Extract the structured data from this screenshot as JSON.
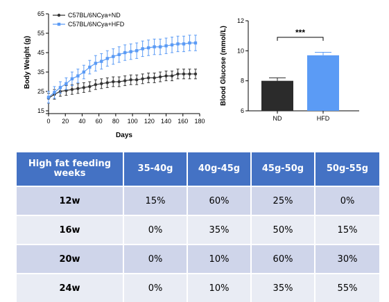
{
  "chart_data": [
    {
      "type": "line",
      "title": "",
      "xlabel": "Days",
      "ylabel": "Body Weight (g)",
      "xlim": [
        0,
        180
      ],
      "ylim": [
        15,
        65
      ],
      "xticks": [
        0,
        20,
        40,
        60,
        80,
        100,
        120,
        140,
        160,
        180
      ],
      "yticks": [
        15,
        25,
        35,
        45,
        55,
        65
      ],
      "legend": "top-left",
      "x": [
        0,
        7,
        14,
        21,
        28,
        35,
        42,
        49,
        56,
        63,
        70,
        77,
        84,
        91,
        98,
        105,
        112,
        119,
        126,
        133,
        140,
        147,
        154,
        161,
        168,
        175
      ],
      "series": [
        {
          "name": "C57BL/6NCya+ND",
          "color": "#333333",
          "marker": "circle",
          "values": [
            21.5,
            23.5,
            25,
            25.5,
            26,
            26.5,
            27,
            27.5,
            28.5,
            29,
            29.5,
            30,
            30,
            30.5,
            31,
            31,
            31.5,
            32,
            32,
            32.5,
            33,
            33,
            34,
            34,
            34,
            34
          ],
          "error": [
            2.5,
            2.5,
            2.5,
            2.5,
            2.5,
            2.5,
            2.5,
            2.5,
            2.5,
            2.5,
            2.5,
            2.5,
            2.5,
            2.5,
            2.5,
            2.5,
            2.5,
            2.5,
            2.5,
            2.5,
            2.5,
            2.5,
            2.5,
            2.5,
            2.5,
            2.5
          ]
        },
        {
          "name": "C57BL/6NCya+HFD",
          "color": "#5b9bf5",
          "marker": "square",
          "values": [
            22,
            24.5,
            27,
            29,
            31.5,
            33,
            35,
            37.5,
            39.5,
            40.5,
            42,
            43,
            44,
            45,
            45.5,
            46,
            47,
            47.5,
            48,
            48,
            48.5,
            49,
            49.5,
            49.5,
            50,
            50
          ],
          "error": [
            3,
            3,
            3,
            3,
            3.5,
            3.5,
            3.5,
            3.5,
            4,
            4,
            4,
            4,
            4,
            4,
            4,
            4,
            4,
            4,
            4,
            4,
            4,
            4,
            4,
            4,
            4,
            4
          ]
        }
      ]
    },
    {
      "type": "bar",
      "title": "",
      "xlabel": "",
      "ylabel": "Blood Glucose (mmol/L)",
      "ylim": [
        6,
        12
      ],
      "yticks": [
        6,
        8,
        10,
        12
      ],
      "categories": [
        "ND",
        "HFD"
      ],
      "values": [
        8.0,
        9.7
      ],
      "error": [
        0.2,
        0.2
      ],
      "colors": [
        "#2b2b2b",
        "#5b9bf5"
      ],
      "annotations": [
        "***"
      ]
    }
  ],
  "table": {
    "headers": [
      "High fat feeding weeks",
      "35-40g",
      "40g-45g",
      "45g-50g",
      "50g-55g"
    ],
    "rows": [
      {
        "label": "12w",
        "cells": [
          "15%",
          "60%",
          "25%",
          "0%"
        ]
      },
      {
        "label": "16w",
        "cells": [
          "0%",
          "35%",
          "50%",
          "15%"
        ]
      },
      {
        "label": "20w",
        "cells": [
          "0%",
          "10%",
          "60%",
          "30%"
        ]
      },
      {
        "label": "24w",
        "cells": [
          "0%",
          "10%",
          "35%",
          "55%"
        ]
      }
    ]
  }
}
